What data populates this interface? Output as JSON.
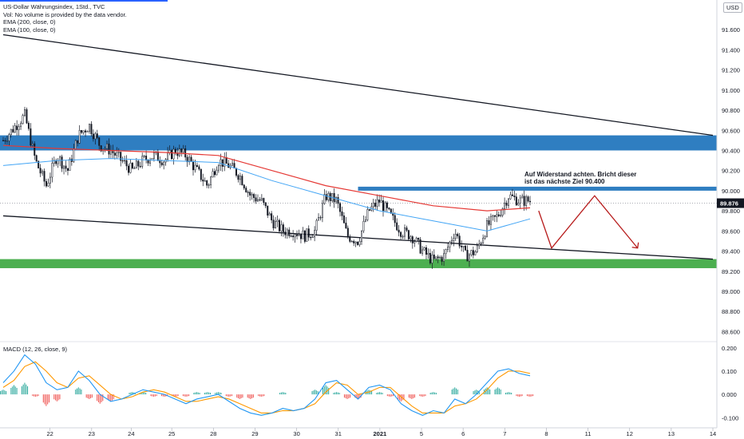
{
  "header": {
    "title": "US-Dollar Währungsindex, 1Std., TVC",
    "volume_note": "Vol: No volume is provided by the data vendor.",
    "ema_200": "EMA (200, close, 0)",
    "ema_100": "EMA (100, close, 0)"
  },
  "currency": "USD",
  "macd_label": "MACD (12, 26, close, 9)",
  "annotation": {
    "line1": "Auf Widerstand achten. Bricht dieser",
    "line2": "ist das nächste Ziel 90.400"
  },
  "colors": {
    "ema200": "#e53935",
    "ema100": "#42a5f5",
    "resistance_zone": "#2f7ec1",
    "support_zone": "#4caf50",
    "candle": "#131722",
    "projection": "#b71c1c",
    "macd_line": "#2196f3",
    "signal_line": "#ff9800",
    "hist_pos": "#26a69a",
    "hist_neg": "#ef5350",
    "price_label_bg": "#131722"
  },
  "chart_data": [
    {
      "type": "candlestick",
      "ylim": [
        88.5,
        91.8
      ],
      "y_ticks": [
        "91.600",
        "91.400",
        "91.200",
        "91.000",
        "90.800",
        "90.600",
        "90.400",
        "90.200",
        "90.000",
        "89.800",
        "89.600",
        "89.400",
        "89.200",
        "89.000",
        "88.800",
        "88.600"
      ],
      "y_tick_values": [
        91.6,
        91.4,
        91.2,
        91.0,
        90.8,
        90.6,
        90.4,
        90.2,
        90.0,
        89.8,
        89.6,
        89.4,
        89.2,
        89.0,
        88.8,
        88.6
      ],
      "x_ticks": [
        "22",
        "23",
        "24",
        "25",
        "28",
        "29",
        "30",
        "31",
        "2021",
        "5",
        "6",
        "7",
        "8",
        "11",
        "12",
        "13",
        "14"
      ],
      "current_price": "89.876",
      "current_price_value": 89.876,
      "price_path": [
        [
          0,
          90.5
        ],
        [
          2,
          90.75
        ],
        [
          3,
          90.3
        ],
        [
          4,
          90.05
        ],
        [
          5,
          90.35
        ],
        [
          6,
          90.2
        ],
        [
          7,
          90.55
        ],
        [
          8,
          90.65
        ],
        [
          9,
          90.45
        ],
        [
          10,
          90.4
        ],
        [
          11,
          90.3
        ],
        [
          12,
          90.2
        ],
        [
          13,
          90.3
        ],
        [
          14,
          90.35
        ],
        [
          15,
          90.3
        ],
        [
          16,
          90.4
        ],
        [
          17,
          90.35
        ],
        [
          18,
          90.2
        ],
        [
          19,
          90.05
        ],
        [
          20,
          90.3
        ],
        [
          21,
          90.25
        ],
        [
          22,
          90.15
        ],
        [
          23,
          89.95
        ],
        [
          24,
          89.9
        ],
        [
          25,
          89.7
        ],
        [
          26,
          89.6
        ],
        [
          27,
          89.6
        ],
        [
          28,
          89.55
        ],
        [
          29,
          89.6
        ],
        [
          30,
          89.95
        ],
        [
          31,
          89.9
        ],
        [
          32,
          89.55
        ],
        [
          33,
          89.5
        ],
        [
          34,
          89.8
        ],
        [
          35,
          89.9
        ],
        [
          36,
          89.75
        ],
        [
          37,
          89.6
        ],
        [
          38,
          89.55
        ],
        [
          39,
          89.4
        ],
        [
          40,
          89.3
        ],
        [
          41,
          89.35
        ],
        [
          42,
          89.6
        ],
        [
          43,
          89.35
        ],
        [
          44,
          89.4
        ],
        [
          45,
          89.65
        ],
        [
          46,
          89.75
        ],
        [
          47,
          89.95
        ],
        [
          48,
          89.9
        ],
        [
          49,
          89.9
        ]
      ],
      "ema200": [
        [
          0,
          90.45
        ],
        [
          5,
          90.42
        ],
        [
          10,
          90.4
        ],
        [
          15,
          90.38
        ],
        [
          20,
          90.35
        ],
        [
          25,
          90.2
        ],
        [
          30,
          90.05
        ],
        [
          35,
          89.95
        ],
        [
          40,
          89.85
        ],
        [
          45,
          89.8
        ],
        [
          49,
          89.83
        ]
      ],
      "ema100": [
        [
          0,
          90.25
        ],
        [
          5,
          90.3
        ],
        [
          10,
          90.32
        ],
        [
          15,
          90.3
        ],
        [
          20,
          90.28
        ],
        [
          25,
          90.1
        ],
        [
          30,
          89.95
        ],
        [
          35,
          89.8
        ],
        [
          40,
          89.7
        ],
        [
          45,
          89.6
        ],
        [
          49,
          89.72
        ]
      ],
      "resistance_zone": [
        90.4,
        90.55
      ],
      "support_zone": [
        89.23,
        89.32
      ],
      "resistance_line": 90.02,
      "upper_trendline": [
        [
          0,
          91.55
        ],
        [
          66,
          90.55
        ]
      ],
      "lower_trendline": [
        [
          0,
          89.75
        ],
        [
          66,
          89.32
        ]
      ],
      "projection": [
        [
          49.8,
          89.8
        ],
        [
          51,
          89.43
        ],
        [
          55,
          89.95
        ],
        [
          59,
          89.43
        ]
      ]
    },
    {
      "type": "macd",
      "ylim": [
        -0.13,
        0.22
      ],
      "y_ticks": [
        "0.200",
        "0.100",
        "0.000",
        "-0.100"
      ],
      "y_tick_values": [
        0.2,
        0.1,
        0.0,
        -0.1
      ],
      "macd": [
        [
          0,
          0.05
        ],
        [
          1,
          0.1
        ],
        [
          2,
          0.17
        ],
        [
          3,
          0.13
        ],
        [
          4,
          0.05
        ],
        [
          5,
          0.02
        ],
        [
          6,
          0.03
        ],
        [
          7,
          0.1
        ],
        [
          8,
          0.06
        ],
        [
          9,
          0.0
        ],
        [
          10,
          -0.03
        ],
        [
          11,
          -0.02
        ],
        [
          12,
          0.0
        ],
        [
          13,
          0.02
        ],
        [
          14,
          0.01
        ],
        [
          15,
          0.0
        ],
        [
          16,
          -0.02
        ],
        [
          17,
          -0.04
        ],
        [
          18,
          -0.02
        ],
        [
          19,
          -0.01
        ],
        [
          20,
          0.0
        ],
        [
          21,
          -0.03
        ],
        [
          22,
          -0.06
        ],
        [
          23,
          -0.08
        ],
        [
          24,
          -0.09
        ],
        [
          25,
          -0.08
        ],
        [
          26,
          -0.06
        ],
        [
          27,
          -0.07
        ],
        [
          28,
          -0.06
        ],
        [
          29,
          -0.02
        ],
        [
          30,
          0.05
        ],
        [
          31,
          0.06
        ],
        [
          32,
          0.02
        ],
        [
          33,
          -0.02
        ],
        [
          34,
          0.03
        ],
        [
          35,
          0.04
        ],
        [
          36,
          0.02
        ],
        [
          37,
          -0.04
        ],
        [
          38,
          -0.07
        ],
        [
          39,
          -0.09
        ],
        [
          40,
          -0.07
        ],
        [
          41,
          -0.08
        ],
        [
          42,
          -0.02
        ],
        [
          43,
          -0.04
        ],
        [
          44,
          0.0
        ],
        [
          45,
          0.05
        ],
        [
          46,
          0.1
        ],
        [
          47,
          0.11
        ],
        [
          48,
          0.09
        ],
        [
          49,
          0.08
        ]
      ],
      "signal": [
        [
          0,
          0.03
        ],
        [
          1,
          0.06
        ],
        [
          2,
          0.12
        ],
        [
          3,
          0.14
        ],
        [
          4,
          0.1
        ],
        [
          5,
          0.05
        ],
        [
          6,
          0.03
        ],
        [
          7,
          0.07
        ],
        [
          8,
          0.08
        ],
        [
          9,
          0.04
        ],
        [
          10,
          0.0
        ],
        [
          11,
          -0.02
        ],
        [
          12,
          -0.01
        ],
        [
          13,
          0.01
        ],
        [
          14,
          0.02
        ],
        [
          15,
          0.01
        ],
        [
          16,
          -0.01
        ],
        [
          17,
          -0.03
        ],
        [
          18,
          -0.03
        ],
        [
          19,
          -0.02
        ],
        [
          20,
          -0.01
        ],
        [
          21,
          -0.02
        ],
        [
          22,
          -0.04
        ],
        [
          23,
          -0.06
        ],
        [
          24,
          -0.08
        ],
        [
          25,
          -0.08
        ],
        [
          26,
          -0.07
        ],
        [
          27,
          -0.07
        ],
        [
          28,
          -0.06
        ],
        [
          29,
          -0.04
        ],
        [
          30,
          0.01
        ],
        [
          31,
          0.05
        ],
        [
          32,
          0.04
        ],
        [
          33,
          0.0
        ],
        [
          34,
          0.01
        ],
        [
          35,
          0.03
        ],
        [
          36,
          0.03
        ],
        [
          37,
          -0.01
        ],
        [
          38,
          -0.05
        ],
        [
          39,
          -0.08
        ],
        [
          40,
          -0.08
        ],
        [
          41,
          -0.08
        ],
        [
          42,
          -0.05
        ],
        [
          43,
          -0.04
        ],
        [
          44,
          -0.02
        ],
        [
          45,
          0.02
        ],
        [
          46,
          0.07
        ],
        [
          47,
          0.1
        ],
        [
          48,
          0.1
        ],
        [
          49,
          0.09
        ]
      ]
    }
  ]
}
